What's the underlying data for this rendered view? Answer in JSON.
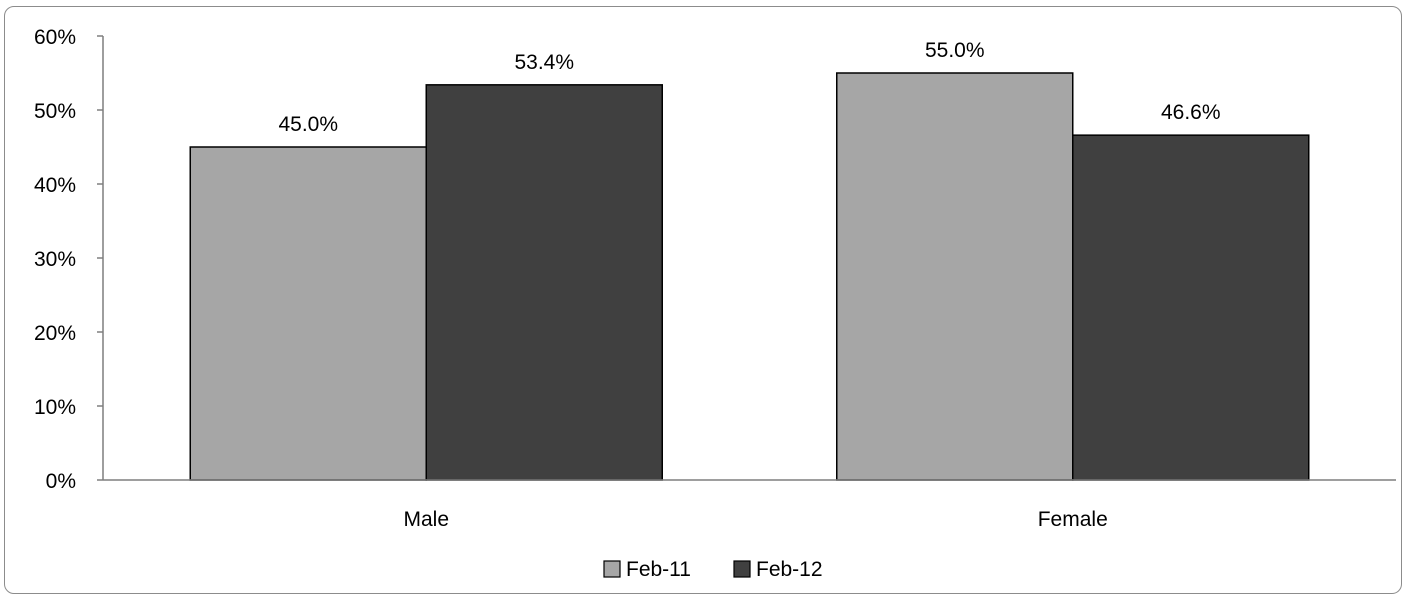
{
  "chart_data": {
    "type": "bar",
    "categories": [
      "Male",
      "Female"
    ],
    "series": [
      {
        "name": "Feb-11",
        "values": [
          45.0,
          55.0
        ],
        "labels": [
          "45.0%",
          "55.0%"
        ],
        "color": "#a6a6a6"
      },
      {
        "name": "Feb-12",
        "values": [
          53.4,
          46.6
        ],
        "labels": [
          "53.4%",
          "46.6%"
        ],
        "color": "#404040"
      }
    ],
    "title": "",
    "xlabel": "",
    "ylabel": "",
    "ylim": [
      0,
      60
    ],
    "yticks": [
      "0%",
      "10%",
      "20%",
      "30%",
      "40%",
      "50%",
      "60%"
    ],
    "grid": false,
    "legend_position": "bottom",
    "axis_color": "#7f7f7f",
    "bar_outline_color": "#000000"
  }
}
